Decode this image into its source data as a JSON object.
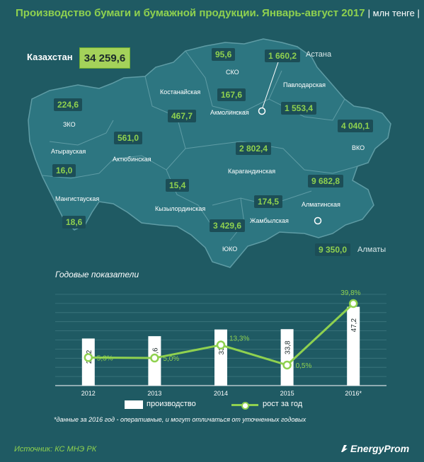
{
  "header": {
    "title": "Производство бумаги и бумажной продукции. Январь-август 2017",
    "unit": "| млн тенге |"
  },
  "country": {
    "label": "Казахстан",
    "value": "34 259,6"
  },
  "map": {
    "regions": [
      {
        "name": "ЗКО",
        "value": "224,6"
      },
      {
        "name": "Атырауская",
        "value": "16,0"
      },
      {
        "name": "Мангистауская",
        "value": "18,6"
      },
      {
        "name": "Актюбинская",
        "value": "561,0"
      },
      {
        "name": "Костанайская",
        "value": "467,7"
      },
      {
        "name": "СКО",
        "value": "95,6"
      },
      {
        "name": "Акмолинская",
        "value": "167,6"
      },
      {
        "name": "Павлодарская",
        "value": "1 553,4"
      },
      {
        "name": "ВКО",
        "value": "4 040,1"
      },
      {
        "name": "Карагандинская",
        "value": "2 802,4"
      },
      {
        "name": "Кызылординская",
        "value": "15,4"
      },
      {
        "name": "ЮКО",
        "value": "3 429,6"
      },
      {
        "name": "Жамбылская",
        "value": "174,5"
      },
      {
        "name": "Алматинская",
        "value": "9 682,8"
      }
    ],
    "cities": [
      {
        "name": "Астана",
        "value": "1 660,2"
      },
      {
        "name": "Алматы",
        "value": "9 350,0"
      }
    ],
    "colors": {
      "land": "#2d7681",
      "border": "#5f9ca5",
      "value_text": "#8fd14f",
      "label_box": "#1c4e57"
    }
  },
  "chart_title": "Годовые показатели",
  "chart_data": {
    "type": "bar",
    "categories": [
      "2012",
      "2013",
      "2014",
      "2015",
      "2016*"
    ],
    "series": [
      {
        "name": "производство",
        "type": "bar",
        "values": [
          28.2,
          29.6,
          33.6,
          33.8,
          47.2
        ],
        "labels": [
          "28,2",
          "29,6",
          "33,6",
          "33,8",
          "47,2"
        ],
        "color": "#ffffff"
      },
      {
        "name": "рост за год",
        "type": "line",
        "values": [
          5.3,
          5.0,
          13.3,
          0.5,
          39.8
        ],
        "labels": [
          "5,3%",
          "5,0%",
          "13,3%",
          "0,5%",
          "39,8%"
        ],
        "color": "#8fd14f"
      }
    ],
    "grid": true,
    "legend_position": "bottom"
  },
  "legend": {
    "bars": "производство",
    "line": "рост за год"
  },
  "footnote": "*данные за 2016 год - оперативные, и могут отличаться от уточненных годовых",
  "source": "Источник: КС МНЭ РК",
  "brand": "EnergyProm"
}
